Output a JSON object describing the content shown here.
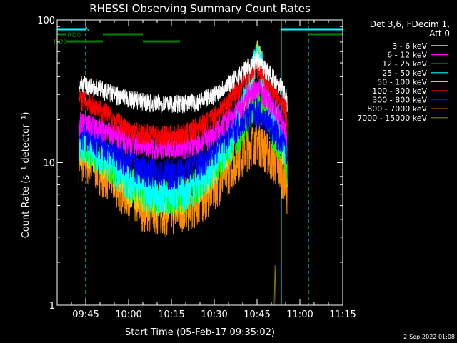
{
  "chart_data": {
    "type": "line",
    "title": "RHESSI Observing Summary Count Rates",
    "xlabel": "Start Time (05-Feb-17 09:35:02)",
    "ylabel": "Count Rate (s⁻¹ detector⁻¹)",
    "yscale": "log",
    "ylim": [
      1,
      100
    ],
    "xlim_minutes": [
      0,
      100
    ],
    "x_ticks": [
      {
        "minute": 10,
        "label": "09:45"
      },
      {
        "minute": 25,
        "label": "10:00"
      },
      {
        "minute": 40,
        "label": "10:15"
      },
      {
        "minute": 55,
        "label": "10:30"
      },
      {
        "minute": 70,
        "label": "10:45"
      },
      {
        "minute": 85,
        "label": "11:00"
      },
      {
        "minute": 100,
        "label": "11:15"
      }
    ],
    "y_ticks": [
      {
        "value": 1,
        "label": "1"
      },
      {
        "value": 10,
        "label": "10"
      },
      {
        "value": 100,
        "label": "100"
      }
    ],
    "legend_title_1": "Det 3,6, FDecim 1,",
    "legend_title_2": "Att 0",
    "legend_position": "right",
    "timestamp": "2-Sep-2022 01:08",
    "series": [
      {
        "name": "3 - 6 keV",
        "color": "#ffffff",
        "x": [
          7.6,
          10,
          15,
          20,
          25,
          30,
          35,
          40,
          45,
          50,
          55,
          60,
          65,
          67,
          69,
          70,
          72,
          75,
          78,
          80,
          80.2,
          80.6
        ],
        "y": [
          36,
          35,
          33,
          30,
          28,
          27,
          26,
          26,
          26,
          27,
          30,
          36,
          43,
          48,
          51,
          53,
          48,
          41,
          35,
          31,
          29,
          24
        ]
      },
      {
        "name": "6 - 12 keV",
        "color": "#ff00ff",
        "x": [
          7.6,
          10,
          15,
          20,
          25,
          30,
          35,
          40,
          45,
          50,
          55,
          60,
          65,
          67,
          69,
          70,
          72,
          75,
          78,
          80,
          80.2,
          80.6
        ],
        "y": [
          19,
          18.5,
          17,
          15.5,
          14,
          13.5,
          13,
          13,
          13,
          14,
          16,
          20,
          26,
          30,
          33,
          34,
          31,
          26,
          21,
          18,
          17,
          14
        ]
      },
      {
        "name": "12 - 25 keV",
        "color": "#00ff00",
        "x": [
          7.6,
          10,
          15,
          20,
          25,
          30,
          35,
          40,
          45,
          50,
          55,
          60,
          65,
          67,
          69,
          70,
          72,
          75,
          78,
          80,
          80.2,
          80.6
        ],
        "y": [
          14,
          13.5,
          11.5,
          9.5,
          7.5,
          6.5,
          6,
          6,
          6.3,
          7.5,
          10,
          13,
          18,
          22,
          26,
          27,
          24,
          18,
          14,
          12,
          11,
          9
        ]
      },
      {
        "name": "25 - 50 keV",
        "color": "#00ffff",
        "x": [
          7.6,
          10,
          15,
          20,
          25,
          30,
          35,
          40,
          45,
          50,
          55,
          60,
          65,
          67,
          69,
          70,
          72,
          75,
          78,
          80,
          80.2,
          80.6
        ],
        "y": [
          14.5,
          14,
          12,
          9.5,
          7.5,
          6.5,
          6,
          6,
          6.5,
          7.5,
          10,
          14,
          24,
          35,
          50,
          60,
          45,
          25,
          16,
          13,
          12,
          10
        ]
      },
      {
        "name": "50 - 100 keV",
        "color": "#ffd200",
        "x": [
          7.6,
          10,
          15,
          20,
          25,
          30,
          35,
          40,
          45,
          50,
          55,
          60,
          65,
          67,
          69,
          70,
          72,
          75,
          78,
          80,
          80.2,
          80.6
        ],
        "y": [
          13.5,
          13,
          11,
          9,
          7,
          6,
          5.5,
          5.5,
          6,
          7,
          9.5,
          13,
          20,
          28,
          45,
          65,
          40,
          22,
          15,
          12,
          11,
          9
        ]
      },
      {
        "name": "100 - 300 keV",
        "color": "#ff0000",
        "x": [
          7.6,
          10,
          15,
          20,
          25,
          30,
          35,
          40,
          45,
          50,
          55,
          60,
          65,
          67,
          69,
          70,
          72,
          75,
          78,
          80,
          80.2,
          80.6
        ],
        "y": [
          28,
          27,
          24,
          20,
          17,
          16,
          15.5,
          15.5,
          16,
          18,
          21,
          27,
          36,
          42,
          46,
          47,
          42,
          34,
          27,
          24,
          22,
          18
        ]
      },
      {
        "name": "300 - 800 keV",
        "color": "#0000ff",
        "x": [
          7.6,
          10,
          15,
          20,
          25,
          30,
          35,
          40,
          45,
          50,
          55,
          60,
          65,
          67,
          69,
          70,
          72,
          75,
          78,
          80,
          80.2,
          80.6
        ],
        "y": [
          16,
          15.5,
          14,
          12,
          10,
          9,
          8.5,
          8.5,
          9,
          10,
          12.5,
          16,
          20,
          22,
          23,
          23,
          21,
          18,
          15,
          13,
          12,
          10
        ]
      },
      {
        "name": "800 - 7000 keV",
        "color": "#ff8c00",
        "x": [
          7.6,
          10,
          15,
          20,
          25,
          30,
          35,
          40,
          45,
          50,
          55,
          60,
          65,
          67,
          69,
          70,
          72,
          75,
          78,
          80,
          80.2,
          80.6
        ],
        "y": [
          11,
          10.5,
          9,
          7.5,
          6,
          5,
          4.6,
          4.6,
          4.8,
          5.5,
          7,
          9,
          12,
          13.5,
          14.5,
          15,
          13.5,
          11,
          9,
          8,
          7.5,
          6
        ]
      },
      {
        "name": "7000 - 15000 keV",
        "color": "#808000",
        "x": [
          76,
          76.3,
          76.6,
          77
        ],
        "y": [
          1,
          1.9,
          1,
          1
        ]
      }
    ]
  },
  "markers": {
    "rd0_label": "RD0",
    "rd6_label": "RD6",
    "n_label": "N"
  }
}
